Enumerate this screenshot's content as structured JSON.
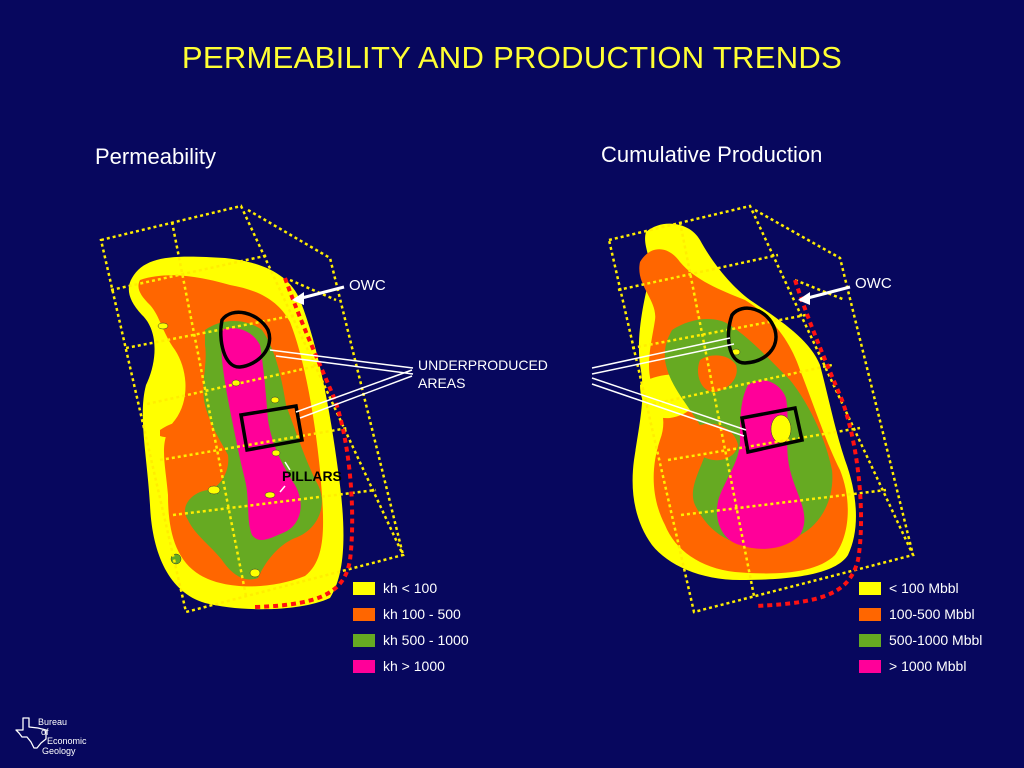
{
  "title": "PERMEABILITY AND PRODUCTION TRENDS",
  "panels": {
    "left": {
      "title": "Permeability",
      "owc_label": "OWC"
    },
    "right": {
      "title": "Cumulative Production",
      "owc_label": "OWC"
    }
  },
  "annotations": {
    "underproduced": [
      "UNDERPRODUCED",
      "AREAS"
    ],
    "pillars": "PILLARS"
  },
  "legends": {
    "permeability": [
      {
        "label": "kh < 100",
        "color": "#ffff00"
      },
      {
        "label": "kh 100 - 500",
        "color": "#ff6600"
      },
      {
        "label": "kh 500 - 1000",
        "color": "#66aa22"
      },
      {
        "label": "kh > 1000",
        "color": "#ff0099"
      }
    ],
    "production": [
      {
        "label": "< 100 Mbbl",
        "color": "#ffff00"
      },
      {
        "label": "100-500 Mbbl",
        "color": "#ff6600"
      },
      {
        "label": "500-1000 Mbbl",
        "color": "#66aa22"
      },
      {
        "label": "> 1000 Mbbl",
        "color": "#ff0099"
      }
    ]
  },
  "logo": {
    "lines": [
      "Bureau",
      "of",
      "Economic",
      "Geology"
    ],
    "icon": "texas-map-icon"
  },
  "colors": {
    "background": "#07075e",
    "title": "#ffff33",
    "grid": "#ffee00",
    "owc_line": "#ff1111"
  }
}
